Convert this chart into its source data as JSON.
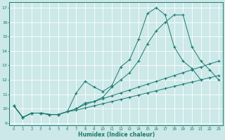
{
  "xlabel": "Humidex (Indice chaleur)",
  "bg_color": "#cce8e8",
  "grid_color": "#ffffff",
  "line_color": "#1a7a6e",
  "xlim": [
    -0.5,
    23.5
  ],
  "ylim": [
    8.85,
    17.4
  ],
  "xticks": [
    0,
    1,
    2,
    3,
    4,
    5,
    6,
    7,
    8,
    9,
    10,
    11,
    12,
    13,
    14,
    15,
    16,
    17,
    18,
    19,
    20,
    21,
    22,
    23
  ],
  "yticks": [
    9,
    10,
    11,
    12,
    13,
    14,
    15,
    16,
    17
  ],
  "lines": [
    {
      "x": [
        0,
        1,
        2,
        3,
        4,
        5,
        6,
        7,
        8,
        9,
        10,
        11,
        12,
        13,
        14,
        15,
        16,
        17,
        18,
        19,
        20,
        21
      ],
      "y": [
        10.2,
        9.4,
        9.7,
        9.7,
        9.6,
        9.6,
        9.8,
        11.1,
        11.9,
        11.5,
        11.2,
        11.6,
        12.9,
        13.4,
        14.8,
        16.6,
        17.0,
        16.5,
        14.3,
        13.3,
        12.8,
        12.0
      ]
    },
    {
      "x": [
        0,
        1,
        2,
        3,
        4,
        5,
        6,
        7,
        8,
        9,
        10,
        11,
        12,
        13,
        14,
        15,
        16,
        17,
        18,
        19,
        20,
        21,
        22,
        23
      ],
      "y": [
        10.2,
        9.4,
        9.7,
        9.7,
        9.6,
        9.6,
        9.8,
        10.0,
        10.4,
        10.5,
        10.8,
        11.5,
        12.0,
        12.5,
        13.3,
        14.5,
        15.4,
        16.0,
        16.5,
        16.5,
        14.3,
        13.3,
        12.7,
        12.0
      ]
    },
    {
      "x": [
        0,
        1,
        2,
        3,
        4,
        5,
        6,
        7,
        8,
        9,
        10,
        11,
        12,
        13,
        14,
        15,
        16,
        17,
        18,
        19,
        20,
        21,
        22,
        23
      ],
      "y": [
        10.2,
        9.4,
        9.7,
        9.7,
        9.6,
        9.6,
        9.8,
        10.0,
        10.3,
        10.5,
        10.7,
        10.9,
        11.1,
        11.3,
        11.5,
        11.7,
        11.9,
        12.1,
        12.3,
        12.5,
        12.7,
        12.9,
        13.1,
        13.3
      ]
    },
    {
      "x": [
        0,
        1,
        2,
        3,
        4,
        5,
        6,
        7,
        8,
        9,
        10,
        11,
        12,
        13,
        14,
        15,
        16,
        17,
        18,
        19,
        20,
        21,
        22,
        23
      ],
      "y": [
        10.2,
        9.4,
        9.7,
        9.7,
        9.6,
        9.6,
        9.8,
        9.9,
        10.05,
        10.2,
        10.35,
        10.5,
        10.65,
        10.8,
        10.95,
        11.1,
        11.25,
        11.4,
        11.55,
        11.7,
        11.85,
        12.0,
        12.15,
        12.3
      ]
    }
  ]
}
